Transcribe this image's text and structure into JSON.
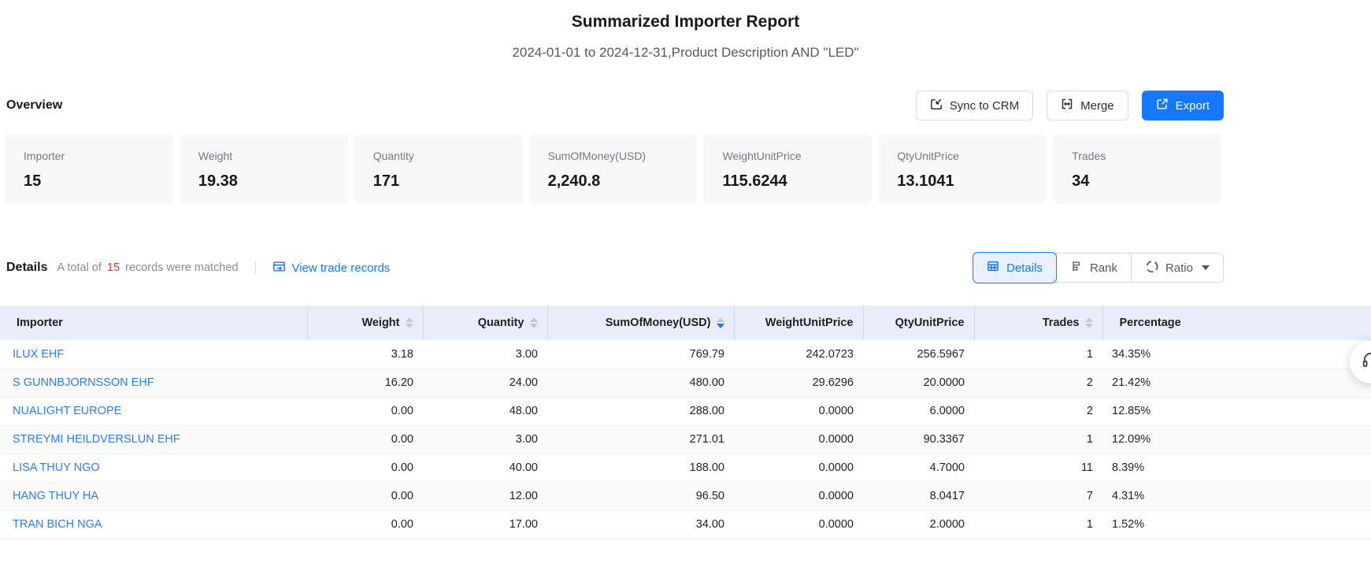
{
  "header": {
    "title": "Summarized Importer Report",
    "subtitle": "2024-01-01 to 2024-12-31,Product Description AND \"LED\""
  },
  "overview": {
    "heading": "Overview",
    "actions": {
      "sync": "Sync to CRM",
      "merge": "Merge",
      "export": "Export"
    },
    "cards": [
      {
        "label": "Importer",
        "value": "15"
      },
      {
        "label": "Weight",
        "value": "19.38"
      },
      {
        "label": "Quantity",
        "value": "171"
      },
      {
        "label": "SumOfMoney(USD)",
        "value": "2,240.8"
      },
      {
        "label": "WeightUnitPrice",
        "value": "115.6244"
      },
      {
        "label": "QtyUnitPrice",
        "value": "13.1041"
      },
      {
        "label": "Trades",
        "value": "34"
      }
    ]
  },
  "details": {
    "heading": "Details",
    "summary_prefix": "A total of",
    "summary_count": "15",
    "summary_suffix": "records were matched",
    "view_link": "View trade records",
    "tabs": [
      {
        "label": "Details",
        "active": true
      },
      {
        "label": "Rank",
        "active": false
      },
      {
        "label": "Ratio",
        "active": false,
        "has_caret": true
      }
    ]
  },
  "table": {
    "columns": [
      {
        "label": "Importer",
        "align": "left",
        "sortable": false,
        "sort": "none"
      },
      {
        "label": "Weight",
        "align": "right",
        "sortable": true,
        "sort": "none"
      },
      {
        "label": "Quantity",
        "align": "right",
        "sortable": true,
        "sort": "none"
      },
      {
        "label": "SumOfMoney(USD)",
        "align": "right",
        "sortable": true,
        "sort": "desc"
      },
      {
        "label": "WeightUnitPrice",
        "align": "right",
        "sortable": false,
        "sort": "none"
      },
      {
        "label": "QtyUnitPrice",
        "align": "right",
        "sortable": false,
        "sort": "none"
      },
      {
        "label": "Trades",
        "align": "right",
        "sortable": true,
        "sort": "none"
      },
      {
        "label": "Percentage",
        "align": "left",
        "sortable": false,
        "sort": "none"
      }
    ],
    "rows": [
      [
        "ILUX EHF",
        "3.18",
        "3.00",
        "769.79",
        "242.0723",
        "256.5967",
        "1",
        "34.35%"
      ],
      [
        "S GUNNBJORNSSON EHF",
        "16.20",
        "24.00",
        "480.00",
        "29.6296",
        "20.0000",
        "2",
        "21.42%"
      ],
      [
        "NUALIGHT EUROPE",
        "0.00",
        "48.00",
        "288.00",
        "0.0000",
        "6.0000",
        "2",
        "12.85%"
      ],
      [
        "STREYMI HEILDVERSLUN EHF",
        "0.00",
        "3.00",
        "271.01",
        "0.0000",
        "90.3367",
        "1",
        "12.09%"
      ],
      [
        "LISA THUY NGO",
        "0.00",
        "40.00",
        "188.00",
        "0.0000",
        "4.7000",
        "11",
        "8.39%"
      ],
      [
        "HANG THUY HA",
        "0.00",
        "12.00",
        "96.50",
        "0.0000",
        "8.0417",
        "7",
        "4.31%"
      ],
      [
        "TRAN BICH NGA",
        "0.00",
        "17.00",
        "34.00",
        "0.0000",
        "2.0000",
        "1",
        "1.52%"
      ]
    ]
  },
  "colors": {
    "accent": "#1677ff",
    "link": "#2f7cf6",
    "red": "#f5312d",
    "header_bg": "#e9edfa",
    "card_bg": "#f7f8fa"
  },
  "float_button": {
    "icon": "headset-support"
  }
}
